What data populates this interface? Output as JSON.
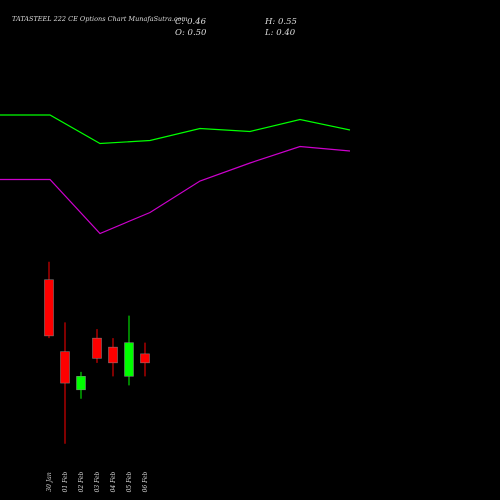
{
  "chart_data": [
    {
      "type": "candlestick",
      "title": "TATASTEEL 222 CE Options Chart MunafaSutra.com",
      "info": {
        "close": "C: 0.46",
        "high": "H: 0.55",
        "open": "O: 0.50",
        "low": "L: 0.40"
      },
      "categories": [
        "30 Jan",
        "01 Feb",
        "02 Feb",
        "03 Feb",
        "04 Feb",
        "05 Feb",
        "06 Feb"
      ],
      "open": [
        0.83,
        0.51,
        0.34,
        0.57,
        0.53,
        0.4,
        0.5
      ],
      "high": [
        0.91,
        0.64,
        0.42,
        0.61,
        0.57,
        0.67,
        0.55
      ],
      "low": [
        0.57,
        0.1,
        0.3,
        0.46,
        0.4,
        0.36,
        0.4
      ],
      "close": [
        0.58,
        0.37,
        0.4,
        0.48,
        0.46,
        0.55,
        0.46
      ],
      "up_color": "#00ff00",
      "down_color": "#ff0000",
      "ylim": [
        0.09,
        0.94
      ]
    },
    {
      "type": "line",
      "categories": [
        null,
        null,
        null,
        null,
        null,
        null,
        null,
        null
      ],
      "series": [
        {
          "color": "#00ff00",
          "values": [
            90,
            90,
            71,
            73,
            81,
            79,
            87,
            80
          ]
        },
        {
          "color": "#cc00cc",
          "values": [
            47,
            47,
            11,
            25,
            46,
            58,
            69,
            66
          ]
        }
      ],
      "ylim": [
        0,
        100
      ]
    }
  ]
}
